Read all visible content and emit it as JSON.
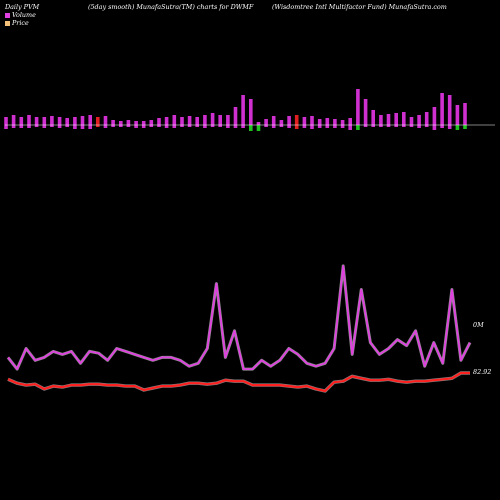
{
  "header": {
    "left": "Daily PVM",
    "middle": "(5day smooth) MunafaSutra(TM) charts for DWMF",
    "right": "(Wisdomtree   Intl Multifactor Fund) MunafaSutra.com"
  },
  "legend": {
    "volume_label": "Volume",
    "price_label": "Price",
    "volume_color": "#e040e0",
    "price_color": "#f5c07a"
  },
  "colors": {
    "background": "#000000",
    "volume_up": "#d030d0",
    "volume_down": "#20c020",
    "volume_alt": "#e02020",
    "volume_line": "#e040e0",
    "price_line": "#ff2020",
    "baseline": "#ffffff"
  },
  "chart_data": {
    "type": "bar+line",
    "volume_bars": {
      "heights": [
        8,
        10,
        8,
        10,
        8,
        8,
        9,
        8,
        7,
        8,
        9,
        10,
        8,
        9,
        5,
        4,
        5,
        4,
        4,
        5,
        7,
        8,
        10,
        8,
        9,
        8,
        10,
        12,
        10,
        10,
        18,
        30,
        26,
        3,
        6,
        9,
        5,
        9,
        10,
        8,
        9,
        6,
        7,
        6,
        5,
        7,
        36,
        26,
        15,
        10,
        11,
        12,
        13,
        8,
        10,
        13,
        18,
        32,
        30,
        20,
        22
      ],
      "below": [
        4,
        3,
        3,
        3,
        2,
        3,
        2,
        3,
        2,
        4,
        4,
        4,
        2,
        3,
        2,
        2,
        2,
        3,
        3,
        2,
        2,
        3,
        3,
        2,
        2,
        2,
        3,
        2,
        2,
        3,
        3,
        3,
        6,
        6,
        2,
        3,
        2,
        3,
        4,
        3,
        4,
        3,
        3,
        3,
        3,
        5,
        5,
        2,
        2,
        2,
        2,
        2,
        2,
        2,
        3,
        2,
        5,
        3,
        4,
        5,
        4
      ],
      "colors": [
        "p",
        "p",
        "p",
        "p",
        "p",
        "p",
        "p",
        "p",
        "p",
        "p",
        "p",
        "p",
        "r",
        "p",
        "p",
        "p",
        "p",
        "p",
        "p",
        "p",
        "p",
        "p",
        "p",
        "p",
        "p",
        "p",
        "p",
        "p",
        "p",
        "p",
        "p",
        "p",
        "g",
        "g",
        "p",
        "p",
        "p",
        "p",
        "r",
        "p",
        "p",
        "p",
        "p",
        "p",
        "p",
        "p",
        "g",
        "p",
        "p",
        "p",
        "p",
        "p",
        "p",
        "p",
        "p",
        "p",
        "p",
        "p",
        "p",
        "g",
        "g"
      ]
    },
    "volume_line": {
      "values": [
        35,
        15,
        50,
        30,
        35,
        45,
        40,
        45,
        25,
        45,
        42,
        30,
        50,
        45,
        40,
        35,
        30,
        35,
        35,
        30,
        20,
        25,
        50,
        160,
        35,
        80,
        15,
        15,
        30,
        20,
        30,
        50,
        40,
        25,
        20,
        25,
        50,
        190,
        40,
        150,
        60,
        40,
        50,
        65,
        55,
        80,
        20,
        60,
        25,
        150,
        30,
        60
      ]
    },
    "price_line": {
      "values": [
        82.6,
        82.4,
        82.3,
        82.35,
        82.1,
        82.25,
        82.2,
        82.3,
        82.3,
        82.35,
        82.35,
        82.3,
        82.3,
        82.25,
        82.25,
        82.05,
        82.15,
        82.25,
        82.25,
        82.3,
        82.4,
        82.4,
        82.35,
        82.4,
        82.55,
        82.5,
        82.5,
        82.3,
        82.3,
        82.3,
        82.3,
        82.25,
        82.2,
        82.25,
        82.1,
        82.0,
        82.45,
        82.5,
        82.75,
        82.65,
        82.55,
        82.55,
        82.6,
        82.5,
        82.45,
        82.5,
        82.5,
        82.55,
        82.6,
        82.65,
        82.92,
        82.92
      ]
    },
    "annotations": {
      "volume_label": "0M",
      "price_label": "82.92"
    }
  }
}
